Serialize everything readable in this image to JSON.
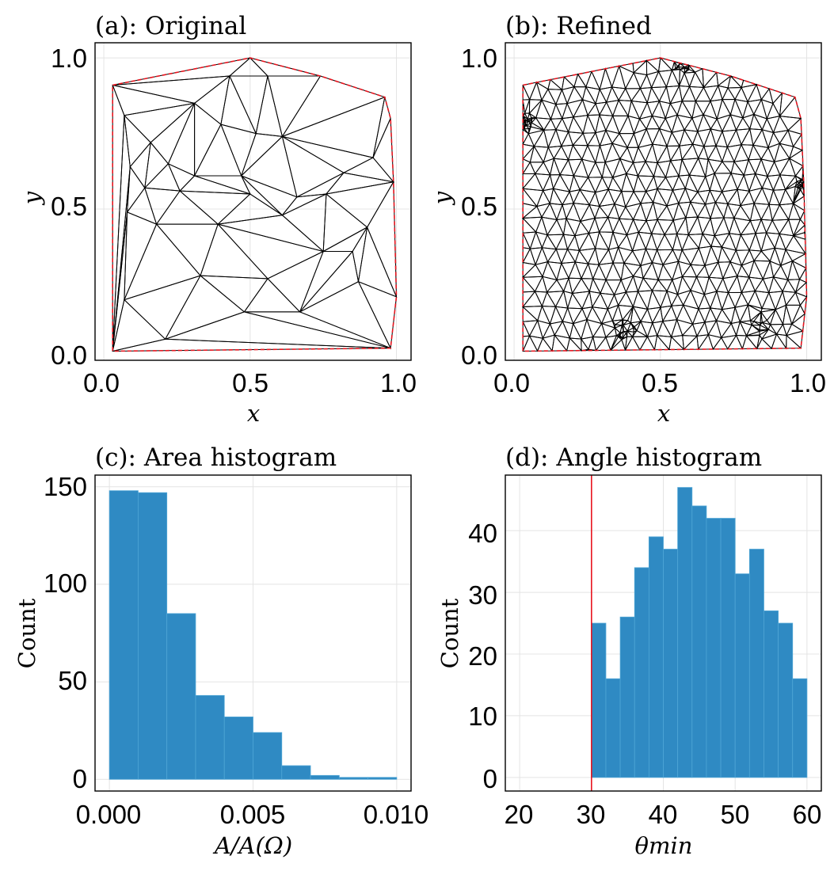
{
  "colors": {
    "bar": "#2f8ac3",
    "boundary": "#e8141e",
    "mesh": "#000000",
    "threshold": "#e8141e"
  },
  "chart_data": [
    {
      "id": "a",
      "type": "mesh",
      "title": "(a): Original",
      "xlabel": "x",
      "ylabel": "y",
      "xlim": [
        -0.03,
        1.05
      ],
      "ylim": [
        0.0,
        1.05
      ],
      "xticks": [
        "0.0",
        "0.5",
        "1.0"
      ],
      "yticks": [
        "0.0",
        "0.5",
        "1.0"
      ],
      "grid": true,
      "boundary": [
        [
          0.03,
          0.91
        ],
        [
          0.5,
          1.0
        ],
        [
          0.74,
          0.94
        ],
        [
          0.96,
          0.87
        ],
        [
          0.98,
          0.8
        ],
        [
          0.99,
          0.59
        ],
        [
          1.0,
          0.21
        ],
        [
          0.98,
          0.04
        ],
        [
          0.03,
          0.03
        ],
        [
          0.03,
          0.91
        ]
      ],
      "points": [
        [
          0.03,
          0.91
        ],
        [
          0.5,
          1.0
        ],
        [
          0.74,
          0.94
        ],
        [
          0.96,
          0.87
        ],
        [
          0.98,
          0.8
        ],
        [
          0.99,
          0.59
        ],
        [
          1.0,
          0.21
        ],
        [
          0.98,
          0.04
        ],
        [
          0.03,
          0.03
        ],
        [
          0.07,
          0.81
        ],
        [
          0.09,
          0.64
        ],
        [
          0.08,
          0.49
        ],
        [
          0.07,
          0.2
        ],
        [
          0.18,
          0.45
        ],
        [
          0.21,
          0.07
        ],
        [
          0.16,
          0.72
        ],
        [
          0.26,
          0.56
        ],
        [
          0.31,
          0.61
        ],
        [
          0.4,
          0.78
        ],
        [
          0.31,
          0.85
        ],
        [
          0.43,
          0.94
        ],
        [
          0.56,
          0.94
        ],
        [
          0.61,
          0.74
        ],
        [
          0.52,
          0.75
        ],
        [
          0.47,
          0.61
        ],
        [
          0.5,
          0.55
        ],
        [
          0.61,
          0.48
        ],
        [
          0.66,
          0.54
        ],
        [
          0.76,
          0.55
        ],
        [
          0.82,
          0.62
        ],
        [
          0.92,
          0.67
        ],
        [
          0.75,
          0.36
        ],
        [
          0.87,
          0.26
        ],
        [
          0.85,
          0.36
        ],
        [
          0.9,
          0.44
        ],
        [
          0.56,
          0.27
        ],
        [
          0.67,
          0.16
        ],
        [
          0.48,
          0.16
        ],
        [
          0.33,
          0.28
        ],
        [
          0.39,
          0.45
        ],
        [
          0.22,
          0.65
        ],
        [
          0.14,
          0.57
        ]
      ],
      "triangles": [
        [
          0,
          19,
          9
        ],
        [
          0,
          20,
          19
        ],
        [
          0,
          1,
          20
        ],
        [
          1,
          21,
          20
        ],
        [
          1,
          2,
          21
        ],
        [
          2,
          22,
          21
        ],
        [
          2,
          3,
          22
        ],
        [
          3,
          4,
          30
        ],
        [
          3,
          30,
          22
        ],
        [
          4,
          5,
          30
        ],
        [
          5,
          29,
          30
        ],
        [
          5,
          28,
          29
        ],
        [
          5,
          34,
          28
        ],
        [
          5,
          6,
          34
        ],
        [
          6,
          32,
          34
        ],
        [
          6,
          7,
          32
        ],
        [
          7,
          36,
          32
        ],
        [
          7,
          37,
          36
        ],
        [
          7,
          14,
          37
        ],
        [
          7,
          8,
          14
        ],
        [
          8,
          12,
          14
        ],
        [
          8,
          11,
          12
        ],
        [
          8,
          10,
          11
        ],
        [
          8,
          9,
          10
        ],
        [
          8,
          0,
          9
        ],
        [
          9,
          15,
          10
        ],
        [
          9,
          19,
          15
        ],
        [
          15,
          19,
          40
        ],
        [
          19,
          17,
          40
        ],
        [
          19,
          18,
          17
        ],
        [
          19,
          20,
          18
        ],
        [
          20,
          21,
          23
        ],
        [
          20,
          23,
          18
        ],
        [
          21,
          22,
          23
        ],
        [
          22,
          24,
          23
        ],
        [
          22,
          27,
          24
        ],
        [
          22,
          29,
          27
        ],
        [
          22,
          30,
          29
        ],
        [
          23,
          24,
          18
        ],
        [
          18,
          24,
          17
        ],
        [
          24,
          25,
          17
        ],
        [
          24,
          26,
          25
        ],
        [
          24,
          27,
          26
        ],
        [
          27,
          28,
          26
        ],
        [
          27,
          29,
          28
        ],
        [
          26,
          28,
          31
        ],
        [
          28,
          34,
          31
        ],
        [
          31,
          34,
          33
        ],
        [
          34,
          32,
          33
        ],
        [
          33,
          32,
          36
        ],
        [
          33,
          36,
          31
        ],
        [
          31,
          36,
          35
        ],
        [
          35,
          36,
          37
        ],
        [
          35,
          37,
          38
        ],
        [
          37,
          14,
          38
        ],
        [
          14,
          12,
          38
        ],
        [
          12,
          13,
          38
        ],
        [
          12,
          11,
          13
        ],
        [
          11,
          41,
          13
        ],
        [
          11,
          10,
          41
        ],
        [
          10,
          15,
          41
        ],
        [
          15,
          40,
          41
        ],
        [
          40,
          16,
          41
        ],
        [
          41,
          16,
          13
        ],
        [
          40,
          17,
          16
        ],
        [
          16,
          17,
          25
        ],
        [
          16,
          25,
          39
        ],
        [
          16,
          39,
          13
        ],
        [
          13,
          39,
          38
        ],
        [
          39,
          26,
          31
        ],
        [
          39,
          25,
          26
        ],
        [
          39,
          31,
          35
        ],
        [
          39,
          35,
          38
        ]
      ]
    },
    {
      "id": "b",
      "type": "mesh",
      "title": "(b): Refined",
      "xlabel": "x",
      "ylabel": "y",
      "xlim": [
        -0.03,
        1.05
      ],
      "ylim": [
        0.0,
        1.05
      ],
      "xticks": [
        "0.0",
        "0.5",
        "1.0"
      ],
      "yticks": [
        "0.0",
        "0.5",
        "1.0"
      ],
      "grid": true,
      "boundary": [
        [
          0.03,
          0.91
        ],
        [
          0.5,
          1.0
        ],
        [
          0.74,
          0.94
        ],
        [
          0.96,
          0.87
        ],
        [
          0.98,
          0.8
        ],
        [
          0.99,
          0.59
        ],
        [
          1.0,
          0.21
        ],
        [
          0.98,
          0.04
        ],
        [
          0.03,
          0.03
        ],
        [
          0.03,
          0.91
        ]
      ],
      "refine_nx": 22,
      "refine_ny": 20,
      "jitter": 0.33,
      "clusters": [
        [
          0.04,
          0.79,
          0.03,
          34
        ],
        [
          0.99,
          0.58,
          0.035,
          30
        ],
        [
          0.58,
          0.97,
          0.03,
          18
        ],
        [
          0.38,
          0.1,
          0.04,
          22
        ],
        [
          0.84,
          0.12,
          0.04,
          12
        ]
      ]
    },
    {
      "id": "c",
      "type": "bar",
      "title": "(c): Area histogram",
      "xlabel": "A/A(Ω)",
      "ylabel": "Count",
      "xlim": [
        -0.0005,
        0.0105
      ],
      "ylim": [
        -6,
        156
      ],
      "xticks": [
        "0.000",
        "0.005",
        "0.010"
      ],
      "yticks": [
        "0",
        "50",
        "100",
        "150"
      ],
      "bin_edges": [
        0.0,
        0.001,
        0.002,
        0.003,
        0.004,
        0.005,
        0.006,
        0.007,
        0.008,
        0.009,
        0.01
      ],
      "values": [
        148,
        147,
        85,
        43,
        32,
        24,
        7,
        2,
        1,
        1
      ]
    },
    {
      "id": "d",
      "type": "bar",
      "title": "(d): Angle histogram",
      "xlabel": "θmin",
      "ylabel": "Count",
      "xlim": [
        18,
        62
      ],
      "ylim": [
        -2.2,
        49
      ],
      "xticks": [
        "20",
        "30",
        "40",
        "50",
        "60"
      ],
      "yticks": [
        "0",
        "10",
        "20",
        "30",
        "40"
      ],
      "bin_edges": [
        30,
        32,
        34,
        36,
        38,
        40,
        42,
        44,
        46,
        48,
        50,
        52,
        54,
        56,
        58,
        60
      ],
      "values": [
        25,
        16,
        26,
        34,
        39,
        37,
        47,
        44,
        42,
        42,
        33,
        37,
        27,
        25,
        16
      ],
      "vline": 30
    }
  ]
}
